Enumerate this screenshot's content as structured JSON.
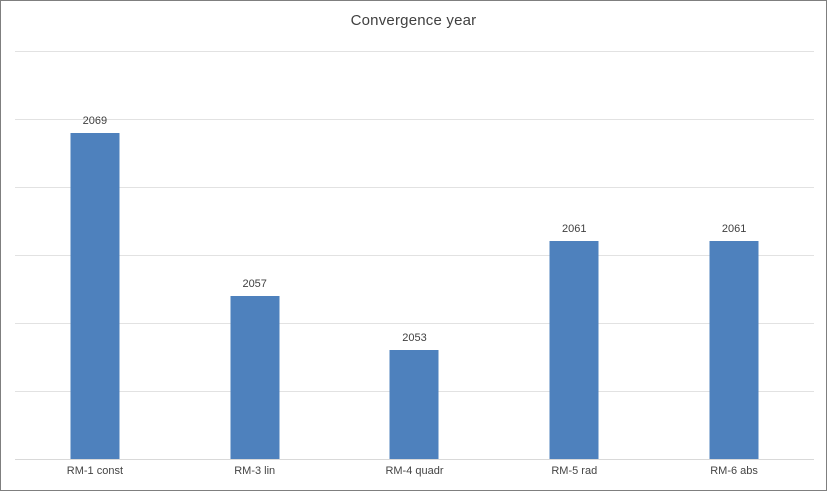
{
  "title": "Convergence year",
  "colors": {
    "bar": "#4E81BD",
    "gridline": "#E2E2E2",
    "axis_line": "#D9D9D9",
    "title_text": "#404040",
    "data_label_text": "#404040",
    "category_label_text": "#444444",
    "chart_border": "#7F7F7F",
    "background": "#FFFFFF"
  },
  "chart_data": {
    "type": "bar",
    "title": "Convergence year",
    "categories": [
      "RM-1 const",
      "RM-3 lin",
      "RM-4 quadr",
      "RM-5 rad",
      "RM-6 abs"
    ],
    "values": [
      2069,
      2057,
      2053,
      2061,
      2061
    ],
    "data_labels": [
      "2069",
      "2057",
      "2053",
      "2061",
      "2061"
    ],
    "xlabel": "",
    "ylabel": "",
    "ylim": [
      2045,
      2075
    ],
    "gridline_interval": 5,
    "grid": true,
    "legend": false,
    "y_axis_labels_visible": false
  }
}
